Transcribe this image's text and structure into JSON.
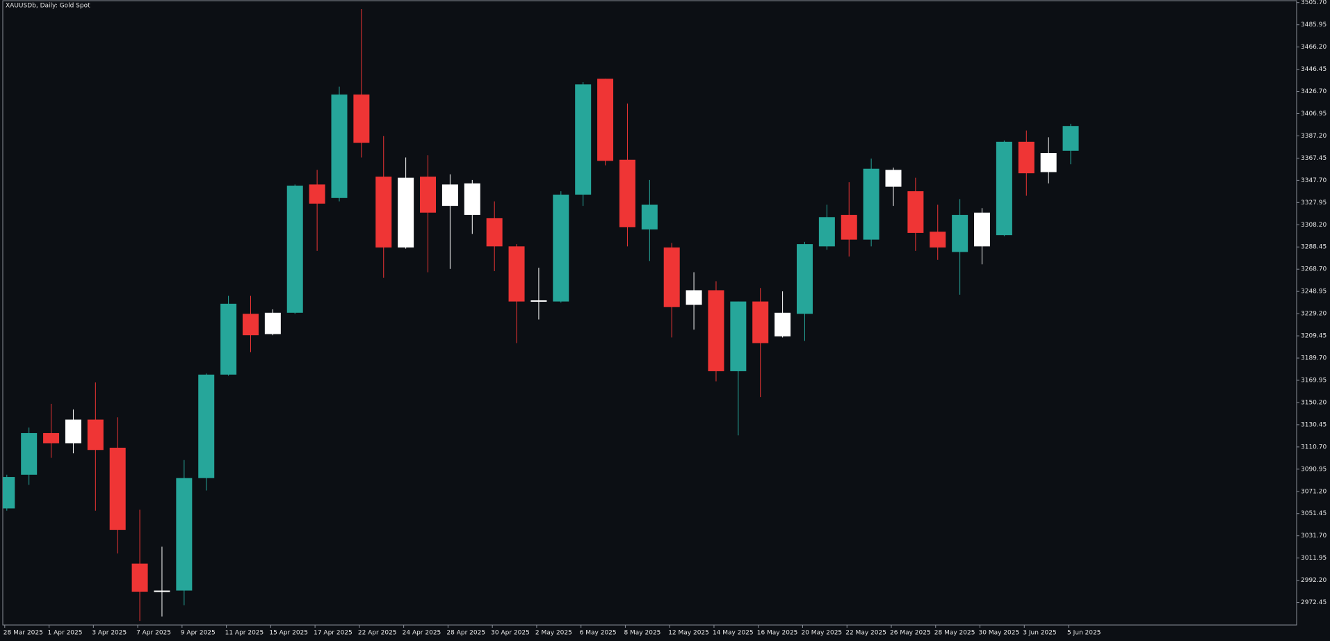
{
  "chart_data": {
    "type": "candlestick",
    "title": "XAUUSDb, Daily:  Gold Spot",
    "categories": [
      "28 Mar 2025",
      null,
      "1 Apr 2025",
      null,
      "3 Apr 2025",
      null,
      "7 Apr 2025",
      null,
      "9 Apr 2025",
      null,
      "11 Apr 2025",
      null,
      "15 Apr 2025",
      null,
      "17 Apr 2025",
      null,
      "22 Apr 2025",
      null,
      "24 Apr 2025",
      null,
      "28 Apr 2025",
      null,
      "30 Apr 2025",
      null,
      "2 May 2025",
      null,
      "6 May 2025",
      null,
      "8 May 2025",
      null,
      "12 May 2025",
      null,
      "14 May 2025",
      null,
      "16 May 2025",
      null,
      "20 May 2025",
      null,
      "22 May 2025",
      null,
      "26 May 2025",
      null,
      "28 May 2025",
      null,
      "30 May 2025",
      null,
      "3 Jun 2025",
      null,
      "5 Jun 2025"
    ],
    "open": [
      3056,
      3086,
      3123,
      3114,
      3135,
      3110,
      3007,
      2982,
      2983,
      3083,
      3175,
      3229,
      3211,
      3230,
      3344,
      3332,
      3424,
      3351,
      3288,
      3351,
      3325,
      3345,
      3314,
      3289,
      3240,
      3240,
      3335,
      3438,
      3366,
      3304,
      3288,
      3237,
      3250,
      3178,
      3240,
      3209,
      3229,
      3289,
      3317,
      3295,
      3357,
      3338,
      3302,
      3284,
      3319,
      3299,
      3382,
      3355,
      3374
    ],
    "high": [
      3086,
      3128,
      3149,
      3144,
      3168,
      3137,
      3055,
      3022,
      3099,
      3176,
      3245,
      3245,
      3233,
      3344,
      3357,
      3431,
      3500,
      3387,
      3368,
      3370,
      3353,
      3348,
      3329,
      3291,
      3270,
      3338,
      3435,
      3438,
      3416,
      3348,
      3292,
      3266,
      3258,
      3240,
      3252,
      3249,
      3293,
      3326,
      3346,
      3367,
      3359,
      3350,
      3326,
      3331,
      3323,
      3383,
      3392,
      3386,
      3398
    ],
    "low": [
      3054,
      3077,
      3101,
      3105,
      3054,
      3016,
      2956,
      2960,
      2970,
      3072,
      3174,
      3195,
      3210,
      3229,
      3285,
      3329,
      3368,
      3261,
      3287,
      3266,
      3269,
      3300,
      3267,
      3203,
      3224,
      3239,
      3325,
      3361,
      3289,
      3276,
      3208,
      3215,
      3169,
      3121,
      3155,
      3208,
      3205,
      3286,
      3280,
      3289,
      3325,
      3285,
      3277,
      3246,
      3273,
      3298,
      3334,
      3345,
      3362
    ],
    "close": [
      3084,
      3123,
      3114,
      3135,
      3108,
      3037,
      2982,
      2983,
      3083,
      3175,
      3238,
      3210,
      3230,
      3343,
      3327,
      3424,
      3381,
      3288,
      3350,
      3319,
      3344,
      3317,
      3289,
      3240,
      3241,
      3335,
      3433,
      3365,
      3306,
      3326,
      3235,
      3250,
      3178,
      3240,
      3203,
      3230,
      3291,
      3315,
      3295,
      3358,
      3342,
      3301,
      3288,
      3317,
      3289,
      3382,
      3354,
      3372,
      3396
    ],
    "colors": [
      "#26a69a",
      "#26a69a",
      "#ef3535",
      "#ffffff",
      "#ef3535",
      "#ef3535",
      "#ef3535",
      "#ffffff",
      "#26a69a",
      "#26a69a",
      "#26a69a",
      "#ef3535",
      "#ffffff",
      "#26a69a",
      "#ef3535",
      "#26a69a",
      "#ef3535",
      "#ef3535",
      "#ffffff",
      "#ef3535",
      "#ffffff",
      "#ffffff",
      "#ef3535",
      "#ef3535",
      "#ffffff",
      "#26a69a",
      "#26a69a",
      "#ef3535",
      "#ef3535",
      "#26a69a",
      "#ef3535",
      "#ffffff",
      "#ef3535",
      "#26a69a",
      "#ef3535",
      "#ffffff",
      "#26a69a",
      "#26a69a",
      "#ef3535",
      "#26a69a",
      "#ffffff",
      "#ef3535",
      "#ef3535",
      "#26a69a",
      "#ffffff",
      "#26a69a",
      "#ef3535",
      "#ffffff",
      "#26a69a"
    ],
    "ylim": [
      2952.4,
      3508.0
    ],
    "yticks": [
      {
        "value": 3505.7,
        "label": "3505.70"
      },
      3485.95,
      {
        "value": 3466.2,
        "label": "3466.20"
      },
      3446.45,
      {
        "value": 3426.7,
        "label": "3426.70"
      },
      3406.95,
      {
        "value": 3387.2,
        "label": "3387.20"
      },
      3367.45,
      {
        "value": 3347.7,
        "label": "3347.70"
      },
      3327.95,
      {
        "value": 3308.2,
        "label": "3308.20"
      },
      3288.45,
      {
        "value": 3268.7,
        "label": "3268.70"
      },
      3248.95,
      {
        "value": 3229.2,
        "label": "3229.20"
      },
      3209.45,
      {
        "value": 3189.7,
        "label": "3189.70"
      },
      3169.95,
      {
        "value": 3150.2,
        "label": "3150.20"
      },
      3130.45,
      {
        "value": 3110.7,
        "label": "3110.70"
      },
      3090.95,
      {
        "value": 3071.2,
        "label": "3071.20"
      },
      3051.45,
      {
        "value": 3031.7,
        "label": "3031.70"
      },
      3011.95,
      {
        "value": 2992.2,
        "label": "2992.20"
      },
      2972.45
    ],
    "grid": false
  }
}
